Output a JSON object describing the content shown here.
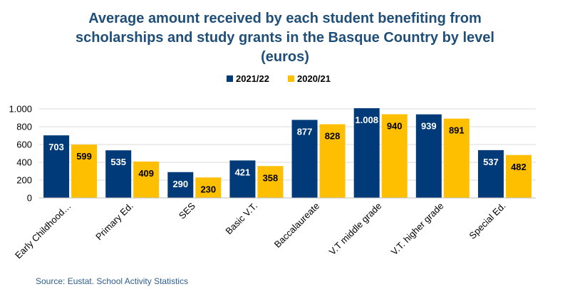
{
  "chart_data": {
    "type": "bar",
    "title_lines": [
      "Average amount received by each student benefiting from",
      "scholarships and study grants in the Basque Country by level",
      "(euros)"
    ],
    "categories": [
      "Early Childhood…",
      "Primary Ed.",
      "SES",
      "Basic V.T.",
      "Baccalaureate",
      "V.T middle grade",
      "V.T. higher grade",
      "Special Ed."
    ],
    "series": [
      {
        "name": "2021/22",
        "color": "#003a78",
        "label_color": "#ffffff",
        "values": [
          703,
          535,
          290,
          421,
          877,
          1008,
          939,
          537
        ],
        "labels": [
          "703",
          "535",
          "290",
          "421",
          "877",
          "1.008",
          "939",
          "537"
        ]
      },
      {
        "name": "2020/21",
        "color": "#fdbf00",
        "label_color": "#000000",
        "values": [
          599,
          409,
          230,
          358,
          828,
          940,
          891,
          482
        ],
        "labels": [
          "599",
          "409",
          "230",
          "358",
          "828",
          "940",
          "891",
          "482"
        ]
      }
    ],
    "ylim": [
      0,
      1000
    ],
    "yticks": [
      0,
      200,
      400,
      600,
      800,
      1000
    ],
    "ytick_labels": [
      "0",
      "200",
      "400",
      "600",
      "800",
      "1.000"
    ],
    "grid": true,
    "legend_position": "top-center",
    "xlabel": "",
    "ylabel": ""
  },
  "source": "Source: Eustat. School Activity Statistics"
}
